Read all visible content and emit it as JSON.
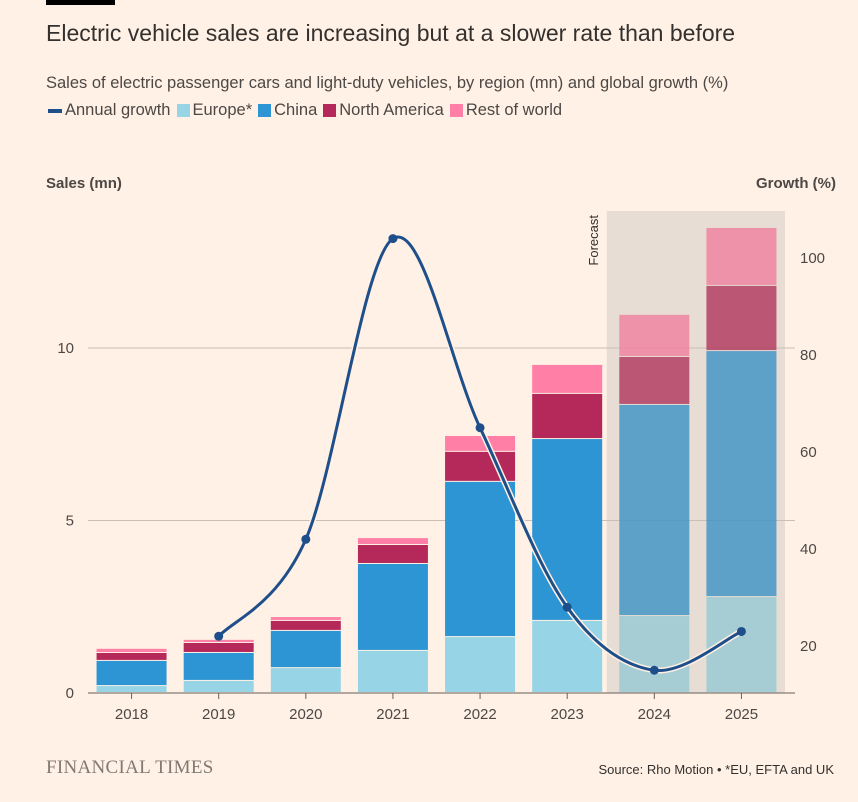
{
  "title": "Electric vehicle sales are increasing but at a slower rate than before",
  "subtitle": "Sales of electric passenger cars and light-duty vehicles, by region (mn) and global growth (%)",
  "brand": "FINANCIAL TIMES",
  "source": "Source: Rho Motion • *EU, EFTA and UK",
  "chart_data": {
    "type": "bar",
    "stacked": true,
    "categories": [
      "2018",
      "2019",
      "2020",
      "2021",
      "2022",
      "2023",
      "2024",
      "2025"
    ],
    "forecast_label": "Forecast",
    "forecast_categories": [
      "2024",
      "2025"
    ],
    "ylabel_left": "Sales (mn)",
    "ylabel_right": "Growth (%)",
    "ylim_left": [
      0,
      14.5
    ],
    "yticks_left": [
      0,
      5,
      10
    ],
    "ylim_right": [
      0,
      112
    ],
    "yticks_right": [
      20,
      40,
      60,
      80,
      100
    ],
    "grid": true,
    "legend_placement": "top-left",
    "series": [
      {
        "name": "Europe*",
        "color": "#96d4e6",
        "values": [
          0.2,
          0.35,
          0.72,
          1.22,
          1.62,
          2.09,
          2.23,
          2.78
        ]
      },
      {
        "name": "China",
        "color": "#2d95d3",
        "values": [
          0.73,
          0.81,
          1.08,
          2.52,
          4.5,
          5.27,
          6.12,
          7.13
        ]
      },
      {
        "name": "North America",
        "color": "#b5295a",
        "values": [
          0.23,
          0.29,
          0.29,
          0.55,
          0.87,
          1.31,
          1.39,
          1.89
        ]
      },
      {
        "name": "Rest of world",
        "color": "#ff7fa6",
        "values": [
          0.12,
          0.09,
          0.11,
          0.2,
          0.46,
          0.84,
          1.22,
          1.68
        ]
      }
    ],
    "line_series": {
      "name": "Annual growth",
      "color": "#1e4f8a",
      "axis": "right",
      "categories": [
        "2019",
        "2020",
        "2021",
        "2022",
        "2023",
        "2024",
        "2025"
      ],
      "values": [
        22,
        42,
        104,
        65,
        28,
        15,
        23
      ]
    }
  }
}
